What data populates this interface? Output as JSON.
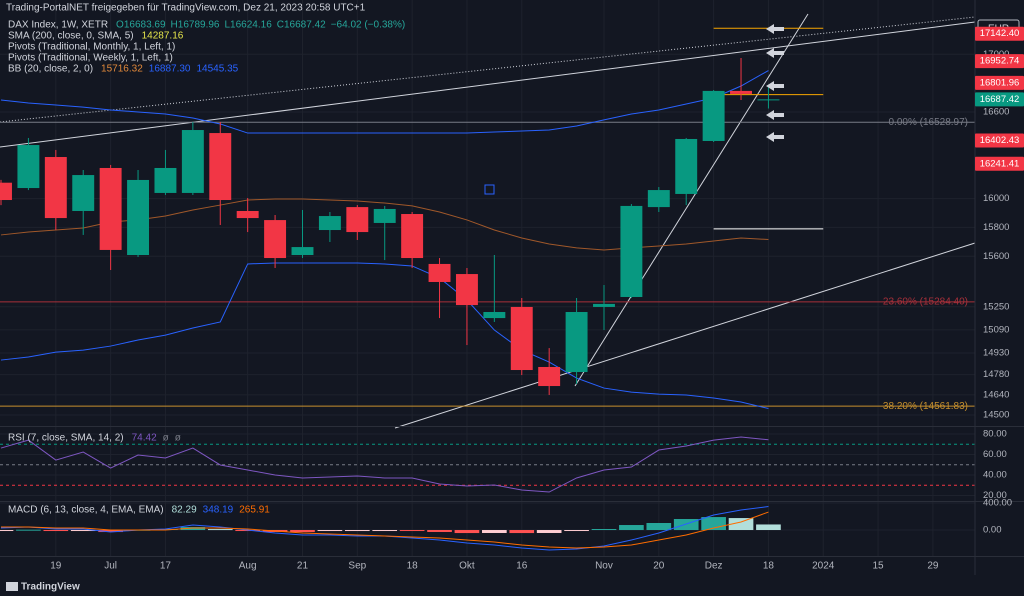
{
  "header": "Trading-PortalNET freigegeben für TradingView.com, Dez 21, 2023 20:58 UTC+1",
  "footer": "TradingView",
  "chart_data": [
    {
      "type": "candlestick",
      "title": "DAX Index, 1W, XETR",
      "ohlc_legend": [
        "O16683.69",
        "H16789.96",
        "L16624.16",
        "C16687.42",
        "−64.02 (−0.38%)"
      ],
      "legend_color": "#26a69a",
      "indicators": [
        {
          "label": "SMA (200, close, 0, SMA, 5)",
          "readouts": [
            "14287.16"
          ],
          "readout_colors": [
            "#e5e54b"
          ]
        },
        {
          "label": "Pivots (Traditional, Monthly, 1, Left, 1)",
          "readouts": [],
          "readout_colors": []
        },
        {
          "label": "Pivots (Traditional, Weekly, 1, Left, 1)",
          "readouts": [],
          "readout_colors": []
        },
        {
          "label": "BB (20, close, 2, 0)",
          "readouts": [
            "15716.32",
            "16887.30",
            "14545.35"
          ],
          "readout_colors": [
            "#e0883a",
            "#2962ff",
            "#2962ff"
          ]
        }
      ],
      "currency": "EUR",
      "up_color": "#089981",
      "down_color": "#f23645",
      "candles": [
        {
          "open": 16110,
          "high": 16130,
          "low": 15955,
          "close": 15990
        },
        {
          "open": 16073,
          "high": 16420,
          "low": 16059,
          "close": 16371
        },
        {
          "open": 16288,
          "high": 16337,
          "low": 15782,
          "close": 15865
        },
        {
          "open": 15914,
          "high": 16198,
          "low": 15748,
          "close": 16163
        },
        {
          "open": 16212,
          "high": 16233,
          "low": 15505,
          "close": 15644
        },
        {
          "open": 15609,
          "high": 16198,
          "low": 15595,
          "close": 16129
        },
        {
          "open": 16039,
          "high": 16337,
          "low": 16025,
          "close": 16212
        },
        {
          "open": 16039,
          "high": 16531,
          "low": 16025,
          "close": 16475
        },
        {
          "open": 16454,
          "high": 16531,
          "low": 15817,
          "close": 15990
        },
        {
          "open": 15914,
          "high": 16004,
          "low": 15768,
          "close": 15865
        },
        {
          "open": 15851,
          "high": 15886,
          "low": 15519,
          "close": 15588
        },
        {
          "open": 15609,
          "high": 15921,
          "low": 15588,
          "close": 15664
        },
        {
          "open": 15782,
          "high": 15907,
          "low": 15699,
          "close": 15879
        },
        {
          "open": 15941,
          "high": 15955,
          "low": 15713,
          "close": 15768
        },
        {
          "open": 15831,
          "high": 15949,
          "low": 15574,
          "close": 15928
        },
        {
          "open": 15893,
          "high": 15907,
          "low": 15519,
          "close": 15588
        },
        {
          "open": 15547,
          "high": 15588,
          "low": 15172,
          "close": 15422
        },
        {
          "open": 15477,
          "high": 15519,
          "low": 14985,
          "close": 15262
        },
        {
          "open": 15172,
          "high": 15609,
          "low": 15145,
          "close": 15214
        },
        {
          "open": 15249,
          "high": 15311,
          "low": 14777,
          "close": 14812
        },
        {
          "open": 14833,
          "high": 14964,
          "low": 14639,
          "close": 14701
        },
        {
          "open": 14798,
          "high": 15311,
          "low": 14715,
          "close": 15214
        },
        {
          "open": 15249,
          "high": 15401,
          "low": 15089,
          "close": 15270
        },
        {
          "open": 15318,
          "high": 15962,
          "low": 15311,
          "close": 15949
        },
        {
          "open": 15941,
          "high": 16080,
          "low": 15907,
          "close": 16059
        },
        {
          "open": 16032,
          "high": 16420,
          "low": 15955,
          "close": 16413
        },
        {
          "open": 16399,
          "high": 16752,
          "low": 16392,
          "close": 16746
        },
        {
          "open": 16746,
          "high": 16974,
          "low": 16683,
          "close": 16725
        },
        {
          "open": 16683.69,
          "high": 16789.96,
          "low": 16624.16,
          "close": 16687.42
        }
      ],
      "bb": {
        "band_color": "#2962ff",
        "basis_color": "#a0582a",
        "upper": [
          16683,
          16662,
          16648,
          16634,
          16614,
          16600,
          16586,
          16558,
          16517,
          16454,
          16454,
          16454,
          16454,
          16454,
          16454,
          16454,
          16454,
          16454,
          16461,
          16468,
          16475,
          16503,
          16545,
          16586,
          16614,
          16655,
          16697,
          16780,
          16887.3
        ],
        "basis": [
          15748,
          15768,
          15782,
          15796,
          15838,
          15852,
          15879,
          15921,
          15955,
          15990,
          15997,
          15997,
          15990,
          15983,
          15969,
          15949,
          15907,
          15852,
          15782,
          15727,
          15685,
          15658,
          15644,
          15658,
          15671,
          15685,
          15706,
          15727,
          15716.32
        ],
        "lower": [
          14881,
          14902,
          14936,
          14950,
          14978,
          15020,
          15054,
          15103,
          15145,
          15547,
          15554,
          15554,
          15554,
          15554,
          15547,
          15533,
          15450,
          15297,
          15089,
          14950,
          14867,
          14756,
          14687,
          14659,
          14645,
          14639,
          14618,
          14590,
          14545.35
        ]
      },
      "fib_levels": [
        {
          "value": 16528.97,
          "label": "0.00% (16528.97)",
          "color": "#787b86"
        },
        {
          "value": 15284.4,
          "label": "23.60% (15284.40)",
          "color": "#a8303a"
        },
        {
          "value": 14561.83,
          "label": "38.20% (14561.83)",
          "color": "#c6902e"
        }
      ],
      "pivot_levels": [
        {
          "value": 17180,
          "color": "#f7a600"
        },
        {
          "value": 16720,
          "color": "#f7a600"
        },
        {
          "value": 15790,
          "color": "#ffffff"
        }
      ],
      "price_badges": [
        {
          "value": 17142.4,
          "label": "17142.40",
          "color": "#f23645"
        },
        {
          "value": 16952.74,
          "label": "16952.74",
          "color": "#f23645"
        },
        {
          "value": 16801.96,
          "label": "16801.96",
          "color": "#f23645"
        },
        {
          "value": 16687.42,
          "label": "16687.42",
          "color": "#089981"
        },
        {
          "value": 16402.43,
          "label": "16402.43",
          "color": "#f23645"
        },
        {
          "value": 16241.41,
          "label": "16241.41",
          "color": "#f23645"
        }
      ],
      "ylim": [
        14431,
        17376
      ],
      "yticks": [
        17000,
        16600,
        16000,
        15800,
        15600,
        15250,
        15090,
        14930,
        14780,
        14640,
        14500
      ],
      "xlim": [
        0,
        35.5
      ],
      "xticks": [
        {
          "value": 2,
          "label": "19"
        },
        {
          "value": 4,
          "label": "Jul"
        },
        {
          "value": 6,
          "label": "17"
        },
        {
          "value": 9,
          "label": "Aug"
        },
        {
          "value": 11,
          "label": "21"
        },
        {
          "value": 13,
          "label": "Sep"
        },
        {
          "value": 15,
          "label": "18"
        },
        {
          "value": 17,
          "label": "Okt"
        },
        {
          "value": 19,
          "label": "16"
        },
        {
          "value": 22,
          "label": "Nov"
        },
        {
          "value": 24,
          "label": "20"
        },
        {
          "value": 26,
          "label": "Dez"
        },
        {
          "value": 28,
          "label": "18"
        },
        {
          "value": 30,
          "label": "2024"
        },
        {
          "value": 32,
          "label": "15"
        },
        {
          "value": 34,
          "label": "29"
        }
      ]
    },
    {
      "type": "line",
      "title": "RSI (7, close, SMA, 14, 2)",
      "readouts": [
        "74.42",
        "ø",
        "ø"
      ],
      "readout_colors": [
        "#7e57c2",
        "#787b86",
        "#787b86"
      ],
      "color": "#7e57c2",
      "values": [
        66.3,
        74.1,
        54.6,
        62.4,
        46.8,
        59.5,
        56.6,
        66.3,
        49.8,
        44.9,
        40.0,
        37.1,
        38.0,
        39.0,
        37.1,
        37.1,
        31.2,
        29.3,
        30.2,
        25.4,
        23.4,
        37.1,
        44.9,
        47.8,
        64.4,
        68.3,
        74.1,
        77.1,
        74.42
      ],
      "bands": [
        {
          "value": 70,
          "color": "#089981"
        },
        {
          "value": 50,
          "color": "#787b86"
        },
        {
          "value": 30,
          "color": "#f23645"
        }
      ],
      "ylim": [
        15.6,
        85.9
      ],
      "yticks": [
        {
          "value": 80,
          "label": "80.00"
        },
        {
          "value": 60,
          "label": "60.00"
        },
        {
          "value": 40,
          "label": "40.00"
        },
        {
          "value": 20,
          "label": "20.00"
        }
      ]
    },
    {
      "type": "macd",
      "title": "MACD (6, 13, close, 4, EMA, EMA)",
      "readouts": [
        "82.29",
        "348.19",
        "265.91"
      ],
      "readout_colors": [
        "#b2dfdb",
        "#2962ff",
        "#ff6d00"
      ],
      "macd_color": "#2962ff",
      "signal_color": "#ff6d00",
      "histogram_colors": [
        "#26a69a",
        "#b2dfdb",
        "#ffcdd2",
        "#ff5252"
      ],
      "histogram": [
        -14,
        5,
        -15,
        -15,
        -30,
        5,
        15,
        44,
        14,
        -15,
        -29,
        -30,
        -15,
        -15,
        -5,
        -15,
        -29,
        -45,
        -44,
        -45,
        -44,
        -14,
        15,
        74,
        104,
        163,
        192,
        177,
        82.29
      ],
      "macd": [
        30,
        44,
        15,
        15,
        -30,
        0,
        15,
        74,
        44,
        0,
        -44,
        -74,
        -74,
        -89,
        -89,
        -119,
        -148,
        -193,
        -222,
        -267,
        -296,
        -281,
        -237,
        -148,
        -44,
        89,
        222,
        296,
        348.19
      ],
      "signal": [
        44,
        44,
        30,
        30,
        0,
        0,
        0,
        30,
        30,
        15,
        -15,
        -44,
        -59,
        -74,
        -89,
        -104,
        -119,
        -148,
        -178,
        -222,
        -252,
        -267,
        -252,
        -222,
        -148,
        -74,
        30,
        119,
        265.91
      ],
      "ylim": [
        -370,
        415
      ],
      "yticks": [
        {
          "value": 400,
          "label": "400.00"
        },
        {
          "value": 0,
          "label": "0.00"
        }
      ]
    }
  ]
}
